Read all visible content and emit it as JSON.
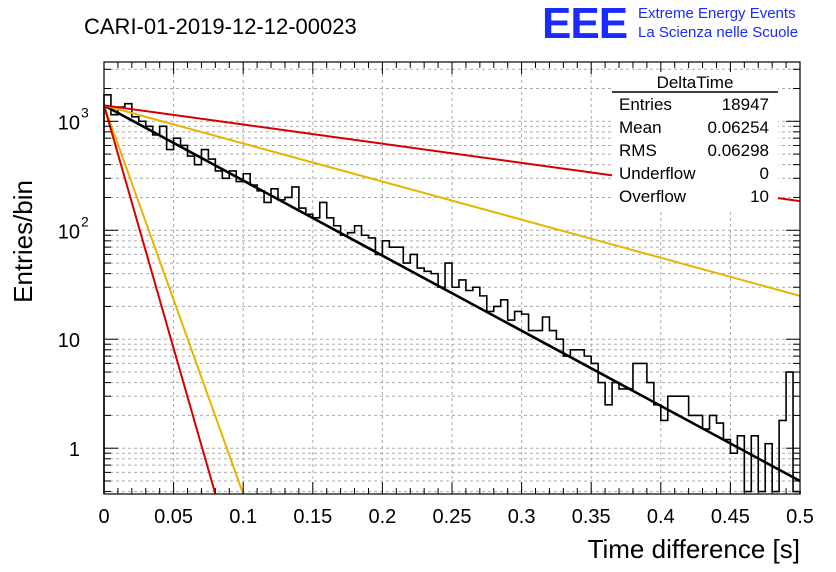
{
  "chart_data": {
    "type": "line",
    "title": "CARI-01-2019-12-12-00023",
    "xlabel": "Time difference [s]",
    "ylabel": "Entries/bin",
    "xlim": [
      0,
      0.5
    ],
    "ylim": [
      0.38,
      3500
    ],
    "y_scale": "log",
    "grid": true,
    "x_ticks": [
      "0",
      "0.05",
      "0.1",
      "0.15",
      "0.2",
      "0.25",
      "0.3",
      "0.35",
      "0.4",
      "0.45",
      "0.5"
    ],
    "y_ticks": [
      "1",
      "10",
      "10",
      "10"
    ],
    "y_tick_exponents": [
      "",
      "",
      "2",
      "3"
    ],
    "stats_box": {
      "title": "DeltaTime",
      "rows": [
        {
          "label": "Entries",
          "value": "18947"
        },
        {
          "label": "Mean",
          "value": "0.06254"
        },
        {
          "label": "RMS",
          "value": "0.06298"
        },
        {
          "label": "Underflow",
          "value": "0"
        },
        {
          "label": "Overflow",
          "value": "10"
        }
      ]
    },
    "histogram": {
      "name": "DeltaTime",
      "color": "#000000",
      "bin_width": 0.005,
      "bin_start": 0,
      "values": [
        1750,
        1150,
        1350,
        1450,
        1100,
        1000,
        900,
        750,
        900,
        550,
        700,
        600,
        480,
        400,
        550,
        450,
        350,
        300,
        350,
        280,
        330,
        260,
        230,
        180,
        240,
        190,
        200,
        250,
        160,
        140,
        130,
        180,
        130,
        110,
        90,
        95,
        110,
        90,
        85,
        60,
        80,
        70,
        70,
        50,
        60,
        45,
        42,
        40,
        30,
        50,
        30,
        35,
        28,
        30,
        25,
        18,
        20,
        23,
        15,
        18,
        17,
        12,
        12,
        16,
        12,
        10,
        7,
        8,
        8,
        7,
        6,
        4,
        2.5,
        4,
        3.5,
        3.5,
        6,
        6,
        4,
        2.5,
        1.8,
        3,
        3,
        3,
        2,
        2,
        1.5,
        2,
        1.7,
        1.2,
        0.9,
        1.3,
        0.4,
        1.3,
        0.4,
        1.1,
        0.4,
        1.8,
        5,
        0.4
      ]
    },
    "series": [
      {
        "color": "#000000",
        "x": [
          0,
          0.5
        ],
        "y": [
          1400,
          0.5
        ]
      },
      {
        "color": "#e8b400",
        "x": [
          0,
          0.5
        ],
        "y": [
          1400,
          25
        ]
      },
      {
        "color": "#d40000",
        "x": [
          0,
          0.5
        ],
        "y": [
          1400,
          185
        ]
      },
      {
        "color": "#e8b400",
        "x": [
          0,
          0.1
        ],
        "y": [
          1400,
          0.38
        ]
      },
      {
        "color": "#d40000",
        "x": [
          0,
          0.08
        ],
        "y": [
          1400,
          0.38
        ]
      }
    ]
  },
  "logo": {
    "mark": "EEE",
    "line1": "Extreme Energy Events",
    "line2": "La Scienza nelle Scuole",
    "color": "#1a2bff"
  }
}
